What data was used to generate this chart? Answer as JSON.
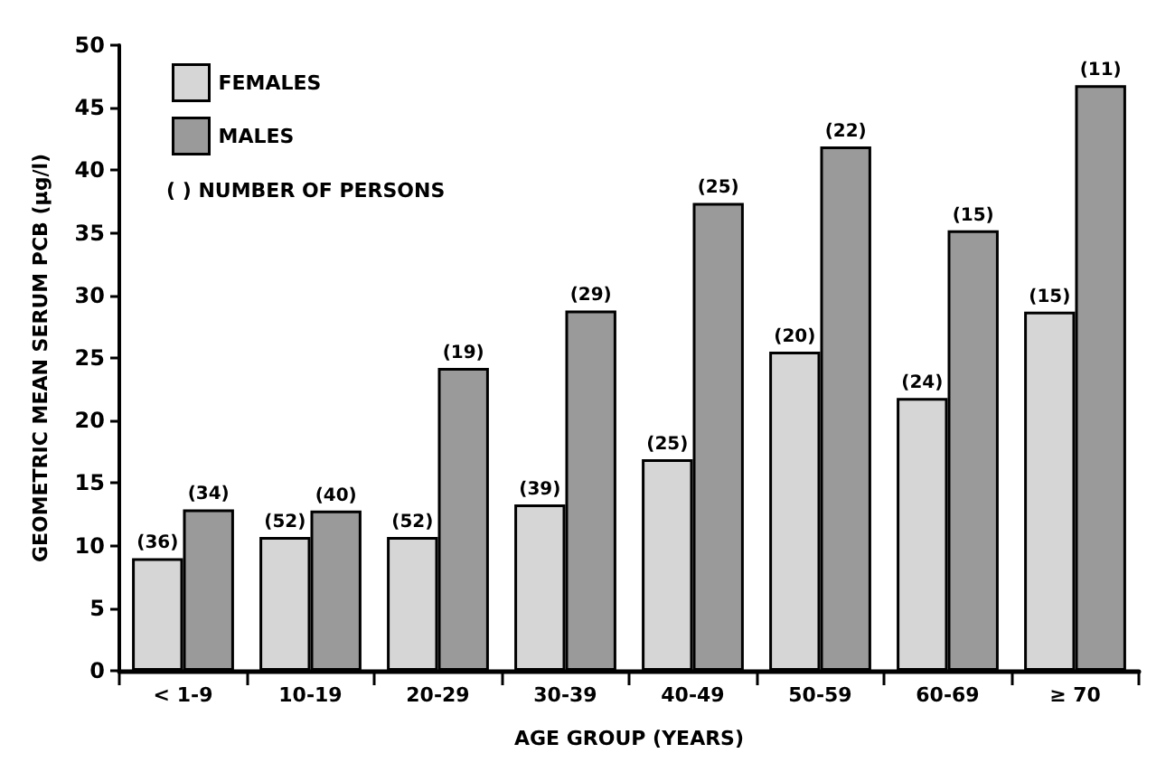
{
  "chart_data": {
    "type": "bar",
    "xlabel": "AGE GROUP (YEARS)",
    "ylabel": "GEOMETRIC MEAN SERUM PCB (μg/l)",
    "categories": [
      "< 1-9",
      "10-19",
      "20-29",
      "30-39",
      "40-49",
      "50-59",
      "60-69",
      "≥ 70"
    ],
    "series": [
      {
        "name": "FEMALES",
        "color": "#d6d6d6",
        "values": [
          9.0,
          10.7,
          10.7,
          13.3,
          16.9,
          25.5,
          21.8,
          28.7
        ]
      },
      {
        "name": "MALES",
        "color": "#9a9a9a",
        "values": [
          12.9,
          12.8,
          24.2,
          28.8,
          37.4,
          41.9,
          35.2,
          46.8
        ]
      }
    ],
    "ylim": [
      0,
      50
    ],
    "yticks": [
      0,
      5,
      10,
      15,
      20,
      25,
      30,
      35,
      40,
      45,
      50
    ],
    "grid": false,
    "legend": "top left",
    "annotations": [
      "( ) NUMBER OF PERSONS",
      {
        "text": "(36)",
        "x": "< 1-9",
        "y": 9.0
      },
      {
        "text": "(34)",
        "x": "< 1-9",
        "y": 12.9
      },
      {
        "text": "(52)",
        "x": "10-19",
        "y": 10.7
      },
      {
        "text": "(40)",
        "x": "10-19",
        "y": 12.8
      },
      {
        "text": "(52)",
        "x": "20-29",
        "y": 10.7
      },
      {
        "text": "(19)",
        "x": "20-29",
        "y": 24.2
      },
      {
        "text": "(39)",
        "x": "30-39",
        "y": 13.3
      },
      {
        "text": "(29)",
        "x": "30-39",
        "y": 28.8
      },
      {
        "text": "(25)",
        "x": "40-49",
        "y": 16.9
      },
      {
        "text": "(25)",
        "x": "40-49",
        "y": 37.4
      },
      {
        "text": "(20)",
        "x": "50-59",
        "y": 25.5
      },
      {
        "text": "(22)",
        "x": "50-59",
        "y": 41.9
      },
      {
        "text": "(24)",
        "x": "60-69",
        "y": 21.8
      },
      {
        "text": "(15)",
        "x": "60-69",
        "y": 35.2
      },
      {
        "text": "(15)",
        "x": "≥ 70",
        "y": 28.7
      },
      {
        "text": "(11)",
        "x": "≥ 70",
        "y": 46.8
      }
    ]
  }
}
